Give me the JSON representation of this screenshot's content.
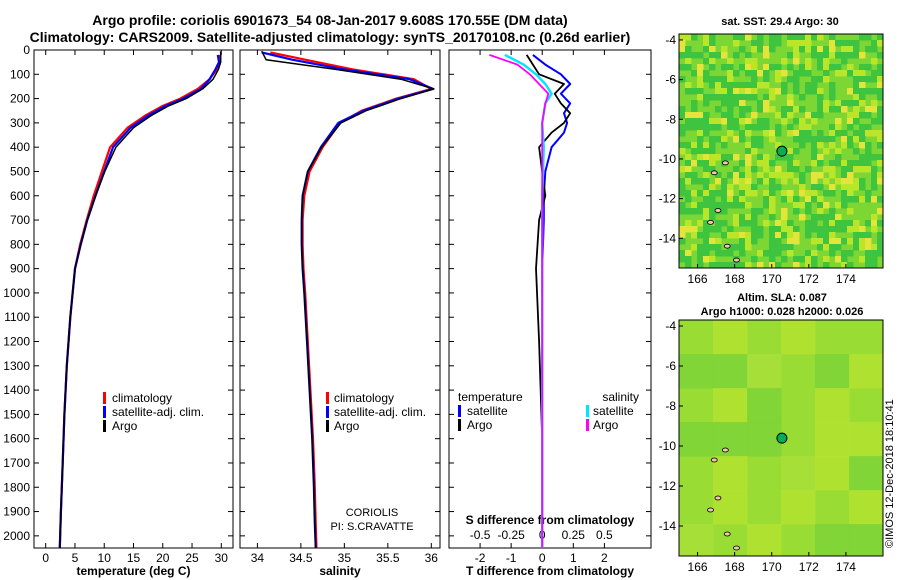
{
  "header": {
    "title_line1": "Argo profile: coriolis 6901673_54 08-Jan-2017 9.608S 170.55E (DM data)",
    "title_line2": "Climatology: CARS2009. Satellite-adjusted climatology: synTS_20170108.nc (0.26d earlier)"
  },
  "colors": {
    "climatology": "#ff0000",
    "satellite": "#0000ff",
    "argo": "#000000",
    "sal_satellite": "#00e5ff",
    "sal_argo": "#ff00ff"
  },
  "chart_data": [
    {
      "type": "line",
      "id": "temperature",
      "xlabel": "temperature (deg C)",
      "ylabel": "",
      "xlim": [
        -2,
        32
      ],
      "ylim": [
        0,
        2050
      ],
      "xticks": [
        0,
        5,
        10,
        15,
        20,
        25,
        30
      ],
      "yticks": [
        0,
        100,
        200,
        300,
        400,
        500,
        600,
        700,
        800,
        900,
        1000,
        1100,
        1200,
        1300,
        1400,
        1500,
        1600,
        1700,
        1800,
        1900,
        2000
      ],
      "legend": [
        "climatology",
        "satellite-adj. clim.",
        "Argo"
      ],
      "series": [
        {
          "name": "climatology",
          "x": [
            29.7,
            29.8,
            29.2,
            28,
            26,
            23,
            20,
            17,
            14,
            11,
            9.6,
            8.2,
            7,
            5.9,
            5,
            4.2,
            3.6,
            3.2,
            2.9,
            2.6,
            2.4
          ],
          "y": [
            20,
            50,
            80,
            120,
            160,
            200,
            230,
            270,
            320,
            400,
            500,
            600,
            700,
            800,
            900,
            1100,
            1300,
            1500,
            1700,
            1900,
            2050
          ]
        },
        {
          "name": "satellite-adj. clim.",
          "x": [
            29.4,
            29.6,
            29,
            28,
            26.5,
            23.5,
            20.5,
            17.5,
            14.5,
            11.5,
            10,
            8.5,
            7.1,
            6,
            5,
            4.2,
            3.6,
            3.2,
            2.9,
            2.6,
            2.4
          ],
          "y": [
            20,
            50,
            80,
            120,
            160,
            200,
            230,
            270,
            320,
            400,
            500,
            600,
            700,
            800,
            900,
            1100,
            1300,
            1500,
            1700,
            1900,
            2050
          ]
        },
        {
          "name": "Argo",
          "x": [
            29.9,
            29.9,
            29.5,
            28.6,
            26.8,
            24,
            21,
            18,
            15,
            12,
            10.1,
            8.5,
            7.1,
            6,
            5,
            4.2,
            3.6,
            3.2,
            2.9,
            2.6,
            2.4
          ],
          "y": [
            5,
            50,
            80,
            120,
            160,
            200,
            230,
            270,
            320,
            400,
            500,
            600,
            700,
            800,
            900,
            1100,
            1300,
            1500,
            1700,
            1900,
            2050
          ]
        }
      ]
    },
    {
      "type": "line",
      "id": "salinity",
      "xlabel": "salinity",
      "xlim": [
        33.8,
        36.1
      ],
      "ylim": [
        0,
        2050
      ],
      "xticks": [
        34,
        34.5,
        35,
        35.5,
        36
      ],
      "legend": [
        "climatology",
        "satellite-adj. clim.",
        "Argo"
      ],
      "annotation_line1": "CORIOLIS",
      "annotation_line2": "PI: S.CRAVATTE",
      "series": [
        {
          "name": "climatology",
          "x": [
            34.15,
            34.55,
            35.1,
            35.8,
            36,
            35.6,
            35.2,
            34.95,
            34.75,
            34.6,
            34.54,
            34.52,
            34.52,
            34.53,
            34.55,
            34.58,
            34.61,
            34.64,
            34.66,
            34.67,
            34.68
          ],
          "y": [
            10,
            40,
            80,
            120,
            160,
            200,
            250,
            300,
            400,
            500,
            600,
            700,
            800,
            900,
            1000,
            1200,
            1400,
            1600,
            1800,
            1950,
            2050
          ]
        },
        {
          "name": "satellite-adj. clim.",
          "x": [
            34.05,
            34.4,
            35.0,
            35.75,
            36.02,
            35.62,
            35.22,
            34.93,
            34.73,
            34.58,
            34.52,
            34.51,
            34.51,
            34.52,
            34.54,
            34.57,
            34.6,
            34.63,
            34.65,
            34.66,
            34.67
          ],
          "y": [
            10,
            40,
            80,
            120,
            160,
            200,
            250,
            300,
            400,
            500,
            600,
            700,
            800,
            900,
            1000,
            1200,
            1400,
            1600,
            1800,
            1950,
            2050
          ]
        },
        {
          "name": "Argo",
          "x": [
            34.05,
            34.1,
            34.9,
            35.65,
            36.03,
            35.65,
            35.25,
            34.96,
            34.74,
            34.58,
            34.52,
            34.51,
            34.51,
            34.52,
            34.54,
            34.57,
            34.6,
            34.63,
            34.65,
            34.66,
            34.67
          ],
          "y": [
            5,
            40,
            80,
            120,
            160,
            200,
            250,
            300,
            400,
            500,
            600,
            700,
            800,
            900,
            1000,
            1200,
            1400,
            1600,
            1800,
            1950,
            2050
          ]
        }
      ]
    },
    {
      "type": "line",
      "id": "differences",
      "xlabel": "T difference from climatology",
      "xlabel_top": "S difference from climatology",
      "xlim": [
        -3,
        3.5
      ],
      "ylim": [
        0,
        2050
      ],
      "xticks": [
        -2,
        -1,
        0,
        1,
        2
      ],
      "xticks_top": [
        "-0.5",
        "-0.25",
        "0",
        "0.25",
        "0.5"
      ],
      "legend_left_title": "temperature",
      "legend_left": [
        "satellite",
        "Argo"
      ],
      "legend_right_title": "salinity",
      "legend_right": [
        "satellite",
        "Argo"
      ],
      "series": [
        {
          "name": "temperature satellite",
          "x": [
            -0.3,
            0.1,
            0.6,
            0.9,
            0.6,
            0.9,
            0.7,
            0.8,
            0.7,
            0.3,
            0.1,
            0.05,
            0.05,
            0.0,
            0.0,
            0.0,
            0.0
          ],
          "y": [
            20,
            60,
            100,
            140,
            180,
            220,
            260,
            300,
            340,
            400,
            500,
            600,
            700,
            900,
            1200,
            1600,
            2050
          ]
        },
        {
          "name": "temperature Argo",
          "x": [
            -0.5,
            -0.3,
            -0.1,
            0.7,
            0.4,
            0.6,
            0.9,
            0.7,
            0.3,
            -0.1,
            0.0,
            0.1,
            -0.1,
            -0.2,
            -0.1,
            0.0,
            0.0
          ],
          "y": [
            20,
            60,
            100,
            140,
            180,
            220,
            260,
            300,
            340,
            400,
            500,
            600,
            700,
            900,
            1200,
            1600,
            2050
          ]
        },
        {
          "name": "salinity satellite",
          "x": [
            -1.2,
            -0.6,
            -0.2,
            0.1,
            0.3,
            0.1,
            0.0,
            0.05,
            0.0,
            0.0,
            0.0,
            0.0,
            0.0
          ],
          "y": [
            20,
            60,
            100,
            140,
            180,
            220,
            300,
            400,
            600,
            900,
            1300,
            1700,
            2050
          ]
        },
        {
          "name": "salinity Argo",
          "x": [
            -1.7,
            -0.8,
            -0.4,
            -0.1,
            0.2,
            0.1,
            0.0,
            0.0,
            0.0,
            0.0,
            0.0,
            0.0,
            0.0
          ],
          "y": [
            20,
            60,
            100,
            140,
            180,
            220,
            300,
            400,
            600,
            900,
            1300,
            1700,
            2050
          ]
        }
      ]
    },
    {
      "type": "heatmap",
      "id": "sst_map",
      "title": "sat. SST: 29.4 Argo: 30",
      "xticks": [
        166,
        168,
        170,
        172,
        174
      ],
      "yticks": [
        -4,
        -6,
        -8,
        -10,
        -12,
        -14
      ],
      "xlim": [
        165,
        176
      ],
      "ylim": [
        -15.5,
        -3.7
      ],
      "marker": {
        "lon": 170.55,
        "lat": -9.608
      }
    },
    {
      "type": "heatmap",
      "id": "sla_map",
      "title_line1": "Altim. SLA: 0.087",
      "title_line2": "Argo h1000: 0.028 h2000: 0.026",
      "xticks": [
        166,
        168,
        170,
        172,
        174
      ],
      "yticks": [
        -4,
        -6,
        -8,
        -10,
        -12,
        -14
      ],
      "xlim": [
        165,
        176
      ],
      "ylim": [
        -15.5,
        -3.7
      ],
      "marker": {
        "lon": 170.55,
        "lat": -9.608
      }
    }
  ],
  "footer": {
    "credit": "©IMOS 12-Dec-2018 18:10:41"
  }
}
